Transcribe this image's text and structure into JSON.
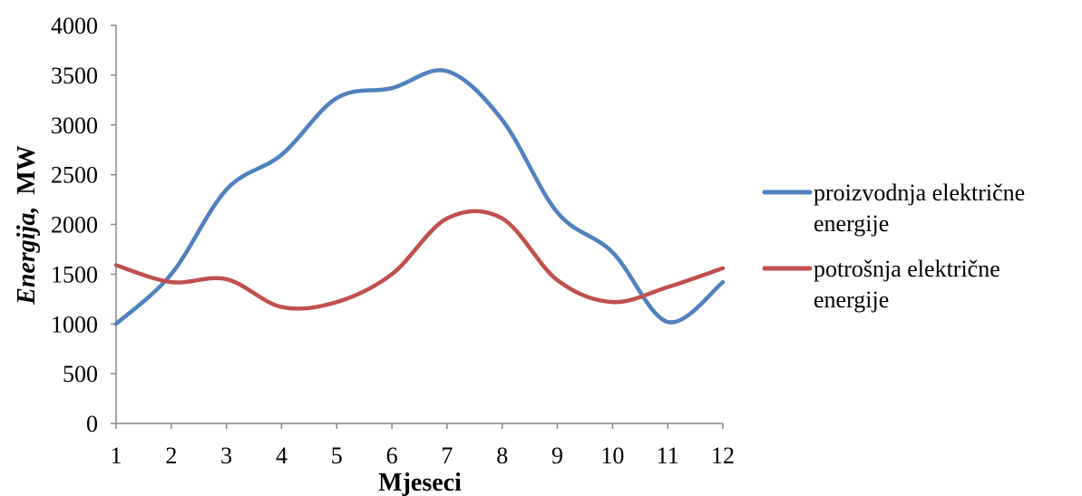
{
  "chart_data": {
    "type": "line",
    "title": "",
    "xlabel": "Mjeseci",
    "ylabel_italic": "Energija,",
    "ylabel_unit": "MW",
    "categories": [
      "1",
      "2",
      "3",
      "4",
      "5",
      "6",
      "7",
      "8",
      "9",
      "10",
      "11",
      "12"
    ],
    "ylim": [
      0,
      4000
    ],
    "yticks": [
      "0",
      "500",
      "1000",
      "1500",
      "2000",
      "2500",
      "3000",
      "3500",
      "4000"
    ],
    "grid": false,
    "legend_position": "right",
    "series": [
      {
        "name_line1": "proizvodnja električne",
        "name_line2": "energije",
        "color": "#4F81BD",
        "values": [
          1000,
          1500,
          2350,
          2700,
          3270,
          3370,
          3540,
          3050,
          2120,
          1720,
          1020,
          1420
        ]
      },
      {
        "name_line1": "potrošnja električne",
        "name_line2": "energije",
        "color": "#C0504D",
        "values": [
          1590,
          1420,
          1450,
          1170,
          1220,
          1500,
          2060,
          2060,
          1440,
          1220,
          1370,
          1560
        ]
      }
    ]
  }
}
